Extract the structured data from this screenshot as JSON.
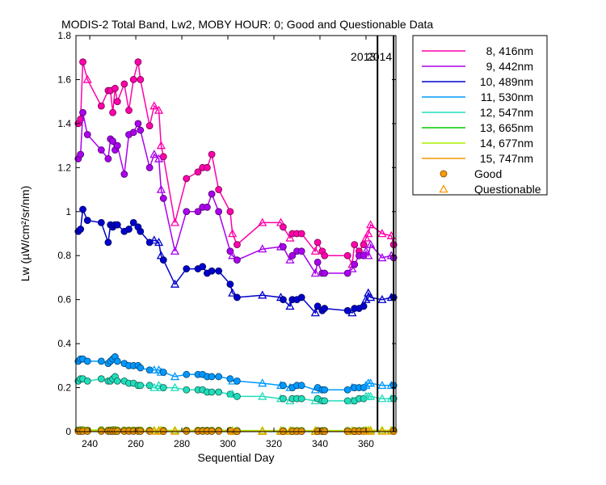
{
  "chart_data": {
    "type": "line",
    "title": "MODIS-2 Total Band,  Lw2, MOBY HOUR: 0;  Good and Questionable Data",
    "xlabel": "Sequential Day",
    "ylabel": "Lw (µW/cm²/sr/nm)",
    "xlim": [
      234,
      373
    ],
    "ylim": [
      0,
      1.8
    ],
    "x_ticks": [
      240,
      260,
      280,
      300,
      320,
      340,
      360
    ],
    "y_ticks": [
      0,
      0.2,
      0.4,
      0.6,
      0.8,
      1,
      1.2,
      1.4,
      1.6,
      1.8
    ],
    "y_tick_labels": [
      "0",
      "0.2",
      "0.4",
      "0.6",
      "0.8",
      "1",
      "1.2",
      "1.4",
      "1.6",
      "1.8"
    ],
    "grid": false,
    "year_dividers": [
      {
        "x": 365,
        "label": "2013"
      },
      {
        "x": 372,
        "label": "2014"
      }
    ],
    "legend": {
      "position": "outside-right",
      "marker_entries": [
        {
          "label": "Good",
          "marker": "circle",
          "color": "#ff9900"
        },
        {
          "label": "Questionable",
          "marker": "triangle",
          "color": "#ff9900"
        }
      ]
    },
    "x": [
      235,
      236,
      237,
      239,
      245,
      248,
      249,
      250,
      251,
      252,
      255,
      257,
      259,
      261,
      262,
      266,
      268,
      270,
      271,
      272,
      277,
      282,
      287,
      289,
      291,
      293,
      296,
      301,
      302,
      304,
      315,
      323,
      324,
      327,
      328,
      330,
      332,
      338,
      339,
      341,
      342,
      352,
      354,
      355,
      357,
      359,
      360,
      361,
      362,
      367,
      371,
      372
    ],
    "series": [
      {
        "name": "8, 416nm",
        "color": "#ff00aa",
        "values": [
          1.4,
          1.42,
          1.68,
          1.6,
          1.48,
          1.55,
          1.55,
          1.45,
          1.56,
          1.5,
          1.58,
          1.46,
          1.6,
          1.68,
          1.6,
          1.39,
          1.48,
          1.46,
          1.3,
          1.25,
          0.95,
          1.15,
          1.18,
          1.2,
          1.2,
          1.26,
          1.1,
          1.0,
          0.9,
          0.85,
          0.95,
          0.95,
          0.93,
          0.88,
          0.9,
          0.9,
          0.9,
          0.82,
          0.86,
          0.82,
          0.8,
          0.8,
          0.76,
          0.85,
          0.82,
          0.85,
          0.88,
          0.9,
          0.94,
          0.9,
          0.89,
          0.85
        ],
        "questionable": [
          0,
          0,
          0,
          1,
          0,
          0,
          0,
          0,
          0,
          0,
          0,
          0,
          0,
          0,
          0,
          0,
          1,
          1,
          1,
          0,
          1,
          0,
          0,
          0,
          0,
          0,
          0,
          0,
          1,
          0,
          1,
          1,
          0,
          1,
          0,
          0,
          0,
          1,
          0,
          0,
          0,
          0,
          1,
          0,
          0,
          0,
          1,
          1,
          1,
          1,
          1,
          0
        ]
      },
      {
        "name": "9, 442nm",
        "color": "#aa00ee",
        "values": [
          1.24,
          1.26,
          1.45,
          1.35,
          1.28,
          1.24,
          1.33,
          1.32,
          1.28,
          1.3,
          1.17,
          1.35,
          1.36,
          1.4,
          1.37,
          1.2,
          1.26,
          1.24,
          1.1,
          1.06,
          0.82,
          1.0,
          1.0,
          1.02,
          1.02,
          1.08,
          1.0,
          0.82,
          0.8,
          0.78,
          0.83,
          0.84,
          0.84,
          0.78,
          0.8,
          0.82,
          0.82,
          0.72,
          0.77,
          0.72,
          0.72,
          0.72,
          0.74,
          0.76,
          0.8,
          0.8,
          0.82,
          0.8,
          0.85,
          0.79,
          0.8,
          0.79
        ],
        "questionable": [
          0,
          0,
          0,
          0,
          0,
          0,
          0,
          0,
          0,
          0,
          0,
          0,
          0,
          0,
          0,
          0,
          1,
          1,
          1,
          0,
          1,
          0,
          0,
          0,
          0,
          0,
          0,
          0,
          1,
          0,
          1,
          1,
          0,
          1,
          0,
          0,
          0,
          1,
          0,
          0,
          0,
          0,
          1,
          0,
          0,
          0,
          1,
          1,
          1,
          1,
          1,
          0
        ]
      },
      {
        "name": "10, 489nm",
        "color": "#0000cc",
        "values": [
          0.91,
          0.92,
          1.01,
          0.96,
          0.95,
          0.86,
          0.94,
          0.93,
          0.94,
          0.94,
          0.91,
          0.92,
          0.95,
          0.93,
          0.91,
          0.86,
          0.87,
          0.86,
          0.8,
          0.78,
          0.67,
          0.74,
          0.74,
          0.75,
          0.72,
          0.73,
          0.73,
          0.67,
          0.63,
          0.61,
          0.62,
          0.61,
          0.6,
          0.57,
          0.6,
          0.6,
          0.61,
          0.54,
          0.57,
          0.55,
          0.56,
          0.55,
          0.54,
          0.56,
          0.56,
          0.57,
          0.6,
          0.63,
          0.61,
          0.6,
          0.61,
          0.61
        ],
        "questionable": [
          0,
          0,
          0,
          0,
          0,
          0,
          0,
          0,
          0,
          0,
          0,
          0,
          0,
          0,
          0,
          0,
          1,
          1,
          1,
          0,
          1,
          0,
          0,
          0,
          0,
          0,
          0,
          0,
          1,
          0,
          1,
          1,
          0,
          1,
          0,
          0,
          0,
          1,
          0,
          0,
          0,
          0,
          1,
          0,
          0,
          0,
          1,
          1,
          1,
          1,
          1,
          0
        ]
      },
      {
        "name": "11, 530nm",
        "color": "#0099ff",
        "values": [
          0.32,
          0.33,
          0.33,
          0.32,
          0.32,
          0.31,
          0.32,
          0.33,
          0.34,
          0.32,
          0.31,
          0.3,
          0.3,
          0.3,
          0.29,
          0.28,
          0.28,
          0.28,
          0.27,
          0.27,
          0.25,
          0.26,
          0.26,
          0.26,
          0.25,
          0.25,
          0.25,
          0.24,
          0.23,
          0.23,
          0.22,
          0.21,
          0.21,
          0.2,
          0.2,
          0.21,
          0.21,
          0.19,
          0.2,
          0.19,
          0.19,
          0.19,
          0.2,
          0.2,
          0.2,
          0.2,
          0.21,
          0.22,
          0.22,
          0.21,
          0.21,
          0.21
        ],
        "questionable": [
          0,
          0,
          0,
          0,
          0,
          0,
          0,
          0,
          0,
          0,
          0,
          0,
          0,
          0,
          0,
          0,
          1,
          1,
          1,
          0,
          1,
          0,
          0,
          0,
          0,
          0,
          0,
          0,
          1,
          0,
          1,
          1,
          0,
          1,
          0,
          0,
          0,
          1,
          0,
          0,
          0,
          0,
          1,
          0,
          0,
          0,
          1,
          1,
          1,
          1,
          1,
          0
        ]
      },
      {
        "name": "12, 547nm",
        "color": "#22ddbb",
        "values": [
          0.23,
          0.24,
          0.24,
          0.23,
          0.24,
          0.23,
          0.23,
          0.24,
          0.25,
          0.23,
          0.23,
          0.22,
          0.22,
          0.21,
          0.21,
          0.21,
          0.2,
          0.21,
          0.2,
          0.2,
          0.2,
          0.19,
          0.19,
          0.19,
          0.18,
          0.18,
          0.18,
          0.17,
          0.17,
          0.16,
          0.16,
          0.15,
          0.15,
          0.14,
          0.15,
          0.15,
          0.15,
          0.14,
          0.15,
          0.14,
          0.14,
          0.14,
          0.14,
          0.14,
          0.15,
          0.15,
          0.16,
          0.16,
          0.16,
          0.15,
          0.15,
          0.15
        ],
        "questionable": [
          0,
          0,
          0,
          0,
          0,
          0,
          0,
          0,
          0,
          0,
          0,
          0,
          0,
          0,
          0,
          0,
          1,
          1,
          1,
          0,
          1,
          0,
          0,
          0,
          0,
          0,
          0,
          0,
          1,
          0,
          1,
          1,
          0,
          1,
          0,
          0,
          0,
          1,
          0,
          0,
          0,
          0,
          1,
          0,
          0,
          0,
          1,
          1,
          1,
          1,
          1,
          0
        ]
      },
      {
        "name": "13, 665nm",
        "color": "#00cc00",
        "values": [
          0.006,
          0.007,
          0.007,
          0.006,
          0.007,
          0.006,
          0.006,
          0.007,
          0.007,
          0.006,
          0.006,
          0.006,
          0.006,
          0.006,
          0.006,
          0.005,
          0.005,
          0.005,
          0.005,
          0.005,
          0.005,
          0.005,
          0.005,
          0.005,
          0.005,
          0.005,
          0.005,
          0.005,
          0.004,
          0.004,
          0.004,
          0.004,
          0.004,
          0.004,
          0.004,
          0.004,
          0.004,
          0.004,
          0.004,
          0.004,
          0.004,
          0.004,
          0.004,
          0.004,
          0.004,
          0.004,
          0.005,
          0.005,
          0.005,
          0.005,
          0.005,
          0.005
        ],
        "questionable": [
          0,
          0,
          0,
          0,
          0,
          0,
          0,
          0,
          0,
          0,
          0,
          0,
          0,
          0,
          0,
          0,
          1,
          1,
          1,
          0,
          1,
          0,
          0,
          0,
          0,
          0,
          0,
          0,
          1,
          0,
          1,
          1,
          0,
          1,
          0,
          0,
          0,
          1,
          0,
          0,
          0,
          0,
          1,
          0,
          0,
          0,
          1,
          1,
          1,
          1,
          1,
          0
        ]
      },
      {
        "name": "14, 677nm",
        "color": "#aaee00",
        "values": [
          0.007,
          0.008,
          0.008,
          0.007,
          0.008,
          0.007,
          0.007,
          0.008,
          0.008,
          0.007,
          0.007,
          0.007,
          0.007,
          0.007,
          0.007,
          0.006,
          0.006,
          0.006,
          0.006,
          0.006,
          0.006,
          0.006,
          0.006,
          0.006,
          0.006,
          0.006,
          0.006,
          0.006,
          0.005,
          0.005,
          0.005,
          0.005,
          0.005,
          0.005,
          0.005,
          0.005,
          0.005,
          0.005,
          0.005,
          0.005,
          0.005,
          0.005,
          0.005,
          0.005,
          0.005,
          0.005,
          0.006,
          0.006,
          0.006,
          0.006,
          0.006,
          0.006
        ],
        "questionable": [
          0,
          0,
          0,
          0,
          0,
          0,
          0,
          0,
          0,
          0,
          0,
          0,
          0,
          0,
          0,
          0,
          1,
          1,
          1,
          0,
          1,
          0,
          0,
          0,
          0,
          0,
          0,
          0,
          1,
          0,
          1,
          1,
          0,
          1,
          0,
          0,
          0,
          1,
          0,
          0,
          0,
          0,
          1,
          0,
          0,
          0,
          1,
          1,
          1,
          1,
          1,
          0
        ]
      },
      {
        "name": "15, 747nm",
        "color": "#ee9900",
        "values": [
          0.002,
          0.002,
          0.002,
          0.002,
          0.002,
          0.002,
          0.002,
          0.002,
          0.002,
          0.002,
          0.002,
          0.002,
          0.002,
          0.002,
          0.002,
          0.002,
          0.002,
          0.002,
          0.002,
          0.002,
          0.002,
          0.002,
          0.002,
          0.002,
          0.002,
          0.002,
          0.002,
          0.002,
          0.001,
          0.001,
          0.001,
          0.001,
          0.001,
          0.001,
          0.001,
          0.001,
          0.001,
          0.001,
          0.001,
          0.001,
          0.001,
          0.001,
          0.001,
          0.001,
          0.001,
          0.001,
          0.002,
          0.002,
          0.002,
          0.002,
          0.002,
          0.002
        ],
        "questionable": [
          0,
          0,
          0,
          0,
          0,
          0,
          0,
          0,
          0,
          0,
          0,
          0,
          0,
          0,
          0,
          0,
          1,
          1,
          1,
          0,
          1,
          0,
          0,
          0,
          0,
          0,
          0,
          0,
          1,
          0,
          1,
          1,
          0,
          1,
          0,
          0,
          0,
          1,
          0,
          0,
          0,
          0,
          1,
          0,
          0,
          0,
          1,
          1,
          1,
          1,
          1,
          0
        ]
      }
    ]
  }
}
